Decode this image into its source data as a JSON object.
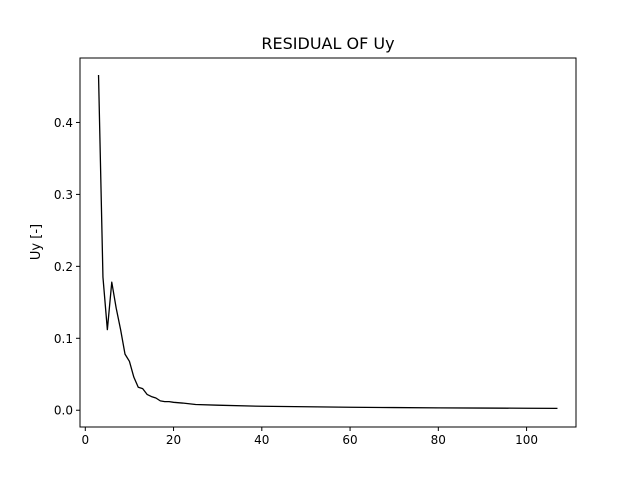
{
  "chart_data": {
    "type": "line",
    "title": "RESIDUAL OF Uy",
    "xlabel": "",
    "ylabel": "Uy [-]",
    "xlim": [
      -1.2,
      111.2
    ],
    "ylim": [
      -0.0233,
      0.4896
    ],
    "x_ticks": [
      0,
      20,
      40,
      60,
      80,
      100
    ],
    "x_tick_labels": [
      "0",
      "20",
      "40",
      "60",
      "80",
      "100"
    ],
    "y_ticks": [
      0.0,
      0.1,
      0.2,
      0.3,
      0.4
    ],
    "y_tick_labels": [
      "0.0",
      "0.1",
      "0.2",
      "0.3",
      "0.4"
    ],
    "grid": false,
    "series": [
      {
        "color": "#000000",
        "x": [
          3,
          4,
          5,
          6,
          7,
          8,
          9,
          10,
          11,
          12,
          13,
          14,
          15,
          16,
          17,
          18,
          19,
          20,
          22,
          25,
          30,
          40,
          50,
          60,
          70,
          80,
          90,
          100,
          107
        ],
        "y": [
          0.466,
          0.185,
          0.112,
          0.178,
          0.142,
          0.112,
          0.078,
          0.068,
          0.046,
          0.032,
          0.03,
          0.022,
          0.019,
          0.017,
          0.013,
          0.012,
          0.012,
          0.011,
          0.01,
          0.008,
          0.007,
          0.0055,
          0.0048,
          0.0042,
          0.0037,
          0.0033,
          0.003,
          0.0028,
          0.0026
        ]
      }
    ]
  }
}
